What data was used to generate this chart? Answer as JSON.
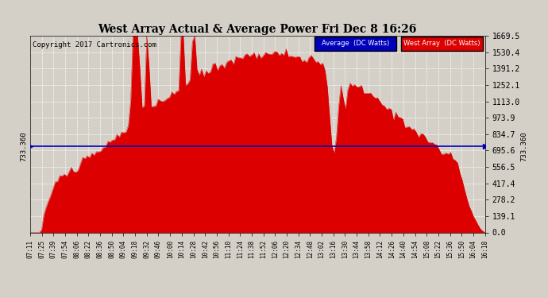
{
  "title": "West Array Actual & Average Power Fri Dec 8 16:26",
  "copyright": "Copyright 2017 Cartronics.com",
  "avg_value": 733.36,
  "y_max": 1669.5,
  "y_tick_vals": [
    0.0,
    139.1,
    278.2,
    417.4,
    556.5,
    695.6,
    834.7,
    973.9,
    1113.0,
    1252.1,
    1391.2,
    1530.4,
    1669.5
  ],
  "y_tick_labels": [
    "0.0",
    "139.1",
    "278.2",
    "417.4",
    "556.5",
    "695.6",
    "834.7",
    "973.9",
    "1113.0",
    "1252.1",
    "1391.2",
    "1530.4",
    "1669.5"
  ],
  "background_color": "#d4d0c8",
  "plot_bg_color": "#d4d0c8",
  "fill_color": "#dd0000",
  "avg_line_color": "#0000bb",
  "legend_avg_bg": "#0000bb",
  "legend_west_bg": "#dd0000",
  "grid_color": "#ffffff",
  "x_labels": [
    "07:11",
    "07:25",
    "07:39",
    "07:54",
    "08:06",
    "08:22",
    "08:36",
    "08:50",
    "09:04",
    "09:18",
    "09:32",
    "09:46",
    "10:00",
    "10:14",
    "10:28",
    "10:42",
    "10:56",
    "11:10",
    "11:24",
    "11:38",
    "11:52",
    "12:06",
    "12:20",
    "12:34",
    "12:48",
    "13:02",
    "13:16",
    "13:30",
    "13:44",
    "13:58",
    "14:12",
    "14:26",
    "14:40",
    "14:54",
    "15:08",
    "15:22",
    "15:36",
    "15:50",
    "16:04",
    "16:18"
  ]
}
